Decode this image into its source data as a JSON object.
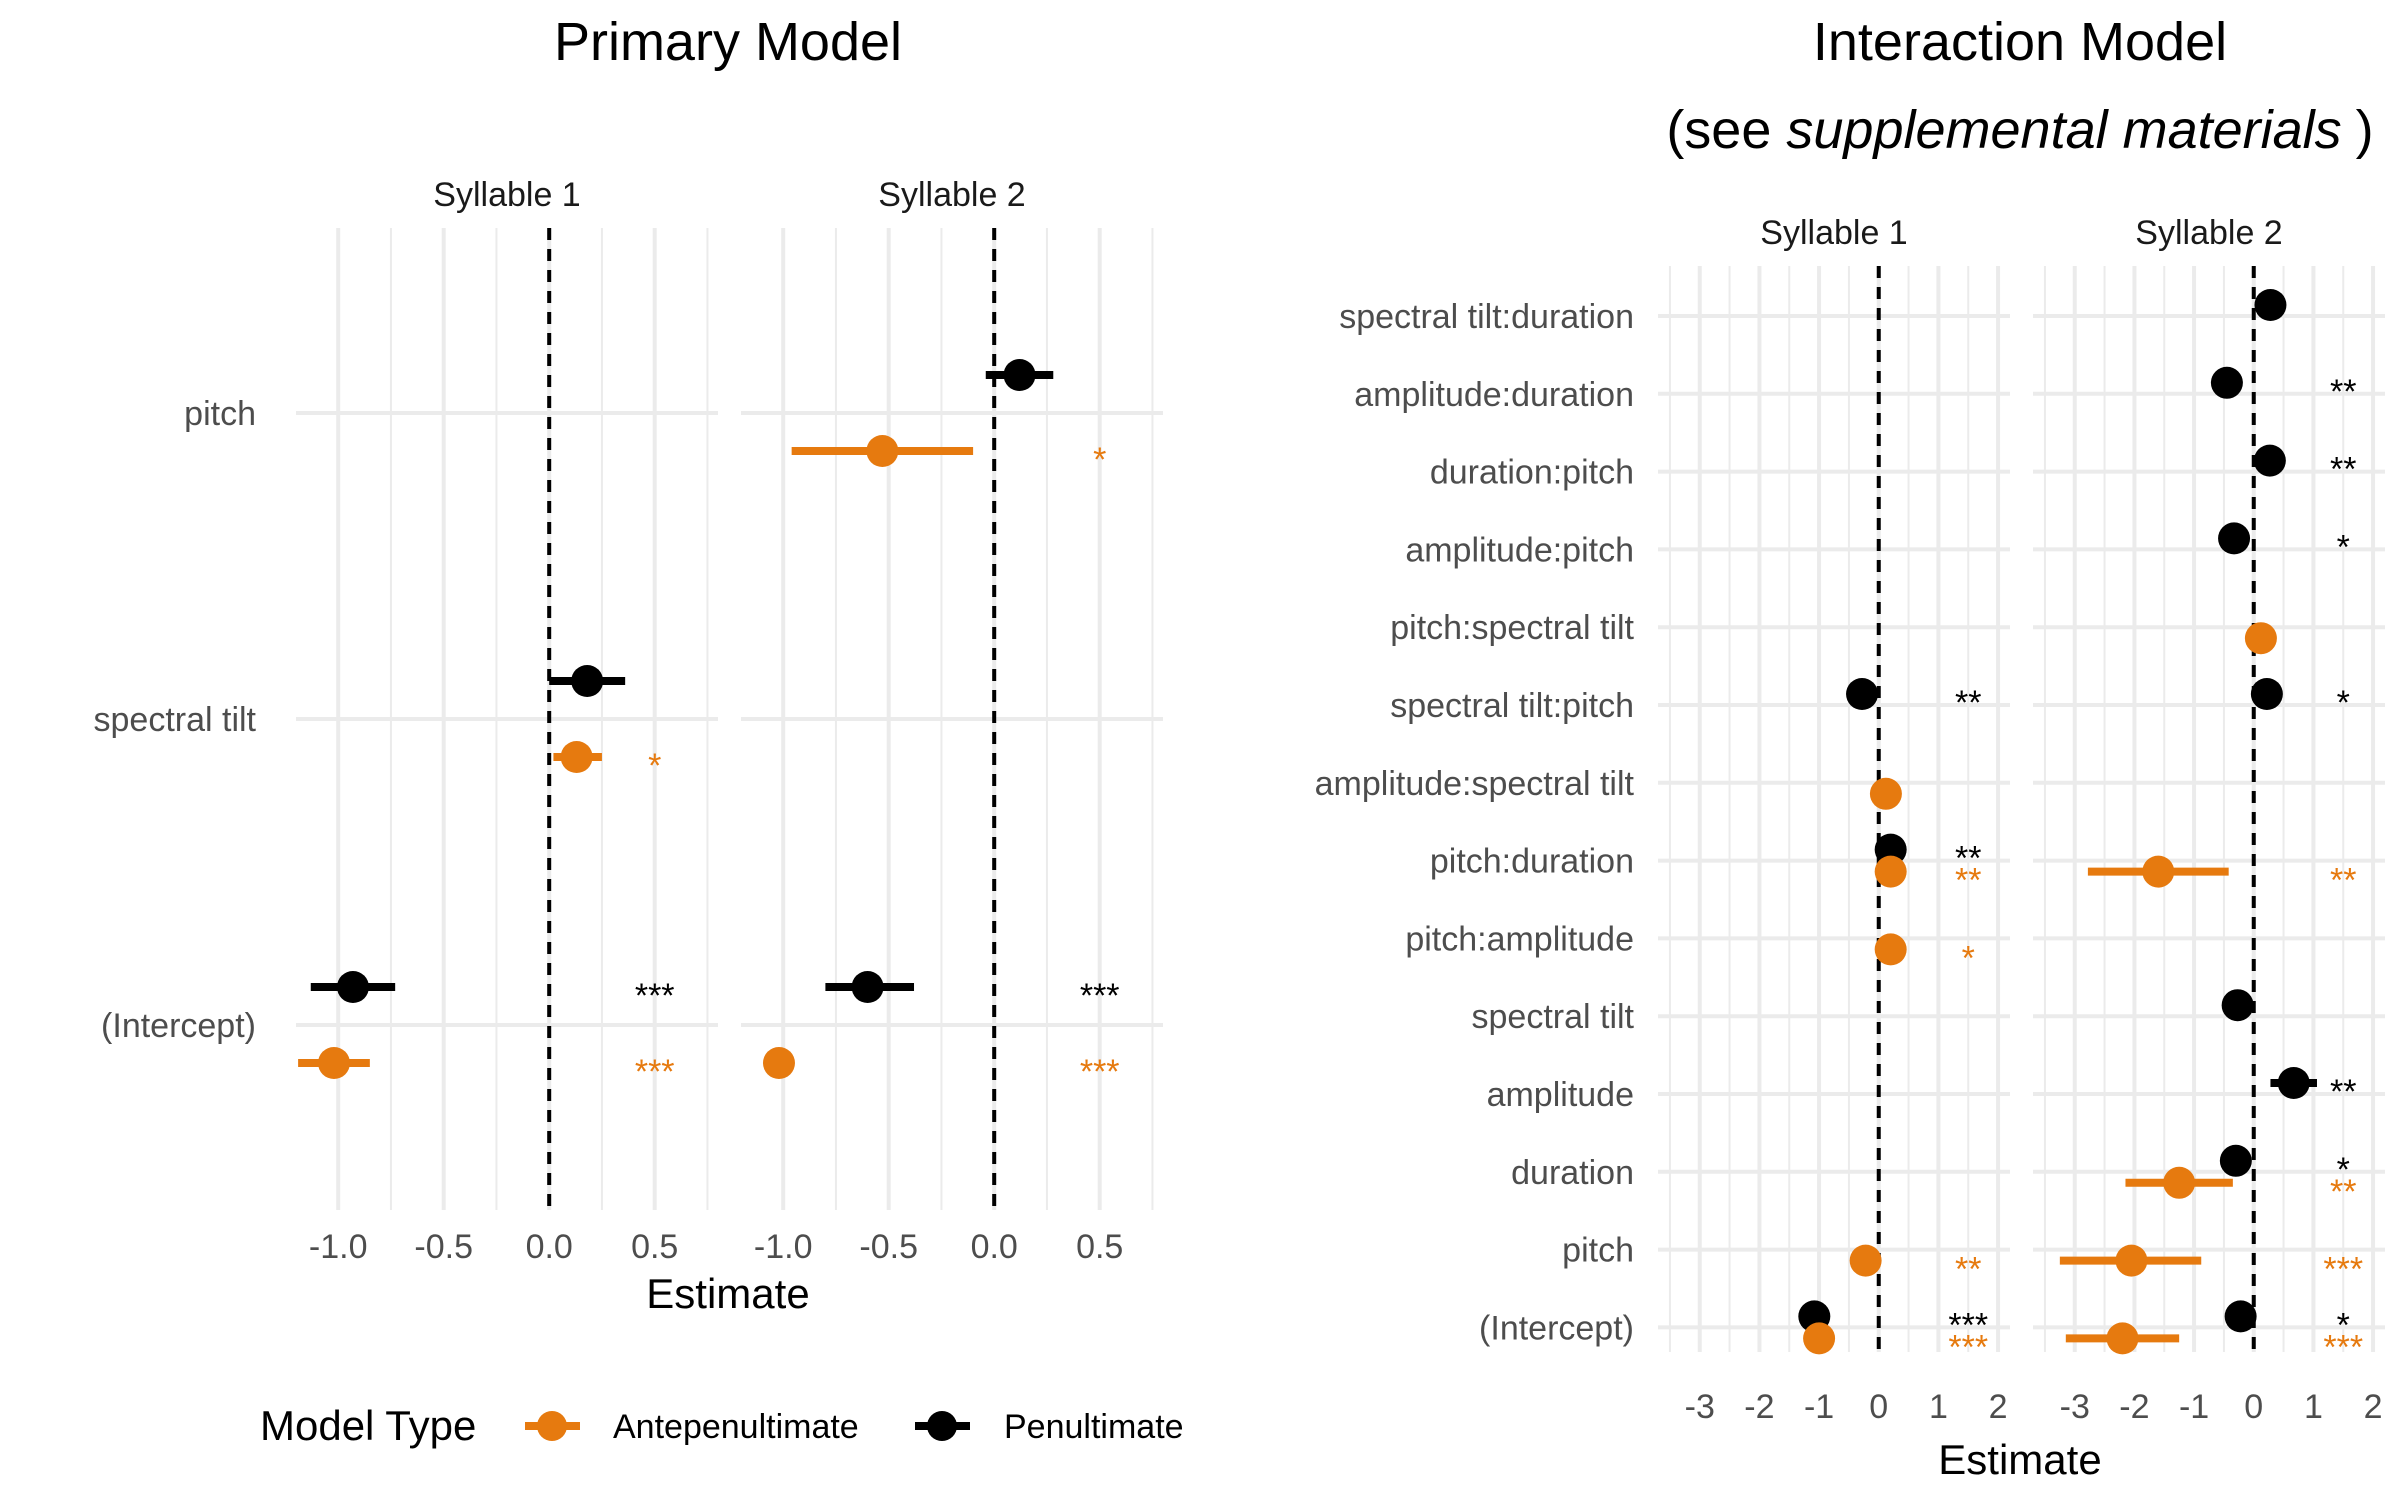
{
  "colors": {
    "Antepenultimate": "#E67A0F",
    "Penultimate": "#000000"
  },
  "legend": {
    "title": "Model Type",
    "items": [
      {
        "label": "Antepenultimate",
        "color": "#E67A0F"
      },
      {
        "label": "Penultimate",
        "color": "#000000"
      }
    ]
  },
  "chart_data": [
    {
      "type": "scatter",
      "title": "Primary Model",
      "xlabel": "Estimate",
      "ylabel": "",
      "xlim": [
        -1.2,
        0.8
      ],
      "xticks": [
        {
          "value": -1.0,
          "label": "-1.0"
        },
        {
          "value": -0.5,
          "label": "-0.5"
        },
        {
          "value": 0.0,
          "label": "0.0"
        },
        {
          "value": 0.5,
          "label": "0.5"
        }
      ],
      "categories": [
        "pitch",
        "spectral tilt",
        "(Intercept)"
      ],
      "star_x": 0.5,
      "facets": [
        {
          "label": "Syllable 1",
          "points": [
            {
              "term": "spectral tilt",
              "series": "Penultimate",
              "est": 0.18,
              "lo": 0.0,
              "hi": 0.36,
              "stars": ""
            },
            {
              "term": "spectral tilt",
              "series": "Antepenultimate",
              "est": 0.13,
              "lo": 0.02,
              "hi": 0.25,
              "stars": "*"
            },
            {
              "term": "(Intercept)",
              "series": "Penultimate",
              "est": -0.93,
              "lo": -1.13,
              "hi": -0.73,
              "stars": "***"
            },
            {
              "term": "(Intercept)",
              "series": "Antepenultimate",
              "est": -1.02,
              "lo": -1.19,
              "hi": -0.85,
              "stars": "***"
            }
          ]
        },
        {
          "label": "Syllable 2",
          "points": [
            {
              "term": "pitch",
              "series": "Penultimate",
              "est": 0.12,
              "lo": -0.04,
              "hi": 0.28,
              "stars": ""
            },
            {
              "term": "pitch",
              "series": "Antepenultimate",
              "est": -0.53,
              "lo": -0.96,
              "hi": -0.1,
              "stars": "*"
            },
            {
              "term": "(Intercept)",
              "series": "Penultimate",
              "est": -0.6,
              "lo": -0.8,
              "hi": -0.38,
              "stars": "***"
            },
            {
              "term": "(Intercept)",
              "series": "Antepenultimate",
              "est": -1.02,
              "lo": -1.06,
              "hi": -0.98,
              "stars": "***"
            }
          ]
        }
      ]
    },
    {
      "type": "scatter",
      "title": "Interaction Model",
      "subtitle_prefix": "(see ",
      "subtitle_italic": "supplemental materials",
      "subtitle_suffix": ")",
      "xlabel": "Estimate",
      "ylabel": "",
      "xlim": [
        -3.7,
        2.2
      ],
      "xticks": [
        {
          "value": -3,
          "label": "-3"
        },
        {
          "value": -2,
          "label": "-2"
        },
        {
          "value": -1,
          "label": "-1"
        },
        {
          "value": 0,
          "label": "0"
        },
        {
          "value": 1,
          "label": "1"
        },
        {
          "value": 2,
          "label": "2"
        }
      ],
      "categories": [
        "spectral tilt:duration",
        "amplitude:duration",
        "duration:pitch",
        "amplitude:pitch",
        "pitch:spectral tilt",
        "spectral tilt:pitch",
        "amplitude:spectral tilt",
        "pitch:duration",
        "pitch:amplitude",
        "spectral tilt",
        "amplitude",
        "duration",
        "pitch",
        "(Intercept)"
      ],
      "star_x": 1.5,
      "facets": [
        {
          "label": "Syllable 1",
          "points": [
            {
              "term": "spectral tilt:pitch",
              "series": "Penultimate",
              "est": -0.28,
              "lo": -0.4,
              "hi": -0.16,
              "stars": "**"
            },
            {
              "term": "amplitude:spectral tilt",
              "series": "Antepenultimate",
              "est": 0.12,
              "lo": 0.05,
              "hi": 0.2,
              "stars": ""
            },
            {
              "term": "pitch:duration",
              "series": "Penultimate",
              "est": 0.2,
              "lo": 0.12,
              "hi": 0.28,
              "stars": "**"
            },
            {
              "term": "pitch:duration",
              "series": "Antepenultimate",
              "est": 0.2,
              "lo": 0.12,
              "hi": 0.28,
              "stars": "**"
            },
            {
              "term": "pitch:amplitude",
              "series": "Antepenultimate",
              "est": 0.2,
              "lo": 0.12,
              "hi": 0.28,
              "stars": "*"
            },
            {
              "term": "pitch",
              "series": "Antepenultimate",
              "est": -0.22,
              "lo": -0.3,
              "hi": -0.14,
              "stars": "**"
            },
            {
              "term": "(Intercept)",
              "series": "Penultimate",
              "est": -1.08,
              "lo": -1.2,
              "hi": -0.96,
              "stars": "***"
            },
            {
              "term": "(Intercept)",
              "series": "Antepenultimate",
              "est": -1.0,
              "lo": -1.1,
              "hi": -0.9,
              "stars": "***"
            }
          ]
        },
        {
          "label": "Syllable 2",
          "points": [
            {
              "term": "spectral tilt:duration",
              "series": "Penultimate",
              "est": 0.28,
              "lo": 0.18,
              "hi": 0.38,
              "stars": ""
            },
            {
              "term": "amplitude:duration",
              "series": "Penultimate",
              "est": -0.45,
              "lo": -0.65,
              "hi": -0.25,
              "stars": "**"
            },
            {
              "term": "duration:pitch",
              "series": "Penultimate",
              "est": 0.27,
              "lo": 0.15,
              "hi": 0.39,
              "stars": "**"
            },
            {
              "term": "amplitude:pitch",
              "series": "Penultimate",
              "est": -0.33,
              "lo": -0.45,
              "hi": -0.21,
              "stars": "*"
            },
            {
              "term": "pitch:spectral tilt",
              "series": "Antepenultimate",
              "est": 0.12,
              "lo": 0.05,
              "hi": 0.19,
              "stars": ""
            },
            {
              "term": "spectral tilt:pitch",
              "series": "Penultimate",
              "est": 0.22,
              "lo": 0.1,
              "hi": 0.34,
              "stars": "*"
            },
            {
              "term": "pitch:duration",
              "series": "Antepenultimate",
              "est": -1.6,
              "lo": -2.78,
              "hi": -0.42,
              "stars": "**"
            },
            {
              "term": "spectral tilt",
              "series": "Penultimate",
              "est": -0.27,
              "lo": -0.52,
              "hi": -0.02,
              "stars": ""
            },
            {
              "term": "amplitude",
              "series": "Penultimate",
              "est": 0.67,
              "lo": 0.28,
              "hi": 1.06,
              "stars": "**"
            },
            {
              "term": "duration",
              "series": "Penultimate",
              "est": -0.3,
              "lo": -0.5,
              "hi": -0.1,
              "stars": "*"
            },
            {
              "term": "duration",
              "series": "Antepenultimate",
              "est": -1.25,
              "lo": -2.15,
              "hi": -0.35,
              "stars": "**"
            },
            {
              "term": "pitch",
              "series": "Antepenultimate",
              "est": -2.05,
              "lo": -3.25,
              "hi": -0.88,
              "stars": "***"
            },
            {
              "term": "(Intercept)",
              "series": "Penultimate",
              "est": -0.22,
              "lo": -0.4,
              "hi": -0.04,
              "stars": "*"
            },
            {
              "term": "(Intercept)",
              "series": "Antepenultimate",
              "est": -2.2,
              "lo": -3.15,
              "hi": -1.25,
              "stars": "***"
            }
          ]
        }
      ]
    }
  ]
}
